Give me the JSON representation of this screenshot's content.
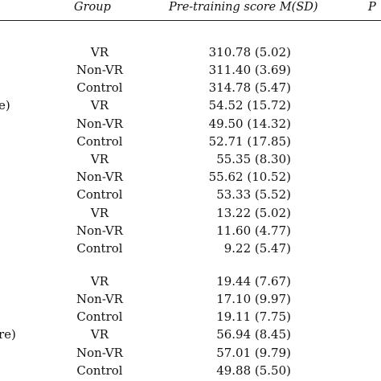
{
  "table": {
    "headers": {
      "group": "Group",
      "pre": "Pre-training score M(SD)",
      "post": "P"
    },
    "rows": [
      {
        "fragment": "",
        "group": "VR",
        "score": "310.78 (5.02)"
      },
      {
        "fragment": "",
        "group": "Non-VR",
        "score": "311.40 (3.69)"
      },
      {
        "fragment": "",
        "group": "Control",
        "score": "314.78 (5.47)"
      },
      {
        "fragment": "e)",
        "group": "VR",
        "score": "54.52 (15.72)"
      },
      {
        "fragment": "",
        "group": "Non-VR",
        "score": "49.50 (14.32)"
      },
      {
        "fragment": "",
        "group": "Control",
        "score": "52.71 (17.85)"
      },
      {
        "fragment": "",
        "group": "VR",
        "score": "55.35 (8.30)"
      },
      {
        "fragment": "",
        "group": "Non-VR",
        "score": "55.62 (10.52)"
      },
      {
        "fragment": "",
        "group": "Control",
        "score": "53.33 (5.52)"
      },
      {
        "fragment": "",
        "group": "VR",
        "score": "13.22 (5.02)"
      },
      {
        "fragment": "",
        "group": "Non-VR",
        "score": "11.60 (4.77)"
      },
      {
        "fragment": "",
        "group": "Control",
        "score": "9.22 (5.47)"
      },
      {
        "fragment": "",
        "group": "VR",
        "score": "19.44 (7.67)"
      },
      {
        "fragment": "",
        "group": "Non-VR",
        "score": "17.10 (9.97)"
      },
      {
        "fragment": "",
        "group": "Control",
        "score": "19.11 (7.75)"
      },
      {
        "fragment": "re)",
        "group": "VR",
        "score": "56.94 (8.45)"
      },
      {
        "fragment": "",
        "group": "Non-VR",
        "score": "57.01 (9.79)"
      },
      {
        "fragment": "",
        "group": "Control",
        "score": "49.88 (5.50)"
      }
    ]
  }
}
